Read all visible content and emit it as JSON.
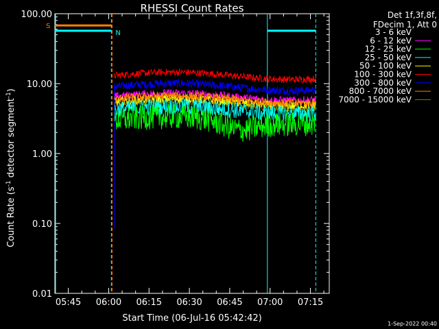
{
  "chart_data": {
    "type": "line",
    "title": "RHESSI Count Rates",
    "xlabel": "Start Time (06-Jul-16 05:42:42)",
    "ylabel_main": "Count Rate (s",
    "ylabel_exp": "-1",
    "ylabel_rest": " detector segment",
    "ylabel_exp2": "-1",
    "ylabel_close": ")",
    "yscale": "log",
    "ylim": [
      0.01,
      100
    ],
    "xlim": [
      "05:40",
      "07:22"
    ],
    "xticks": [
      "05:45",
      "06:00",
      "06:15",
      "06:30",
      "06:45",
      "07:00",
      "07:15"
    ],
    "yticks": [
      "0.01",
      "0.10",
      "1.00",
      "10.00",
      "100.00"
    ],
    "legend_header": [
      "Det 1f,3f,8f,",
      "FDecim 1, Att 0"
    ],
    "series": [
      {
        "name": "3 - 6 keV",
        "color": "#000000",
        "level": 6.0
      },
      {
        "name": "6 - 12 keV",
        "color": "#ff00ff",
        "level": 6.5
      },
      {
        "name": "12 - 25 keV",
        "color": "#00ff00",
        "level": 3.0
      },
      {
        "name": "25 - 50 keV",
        "color": "#00ffff",
        "level": 4.2
      },
      {
        "name": "50 - 100 keV",
        "color": "#ffff00",
        "level": 5.5
      },
      {
        "name": "100 - 300 keV",
        "color": "#ff0000",
        "level": 13.0
      },
      {
        "name": "300 - 800 keV",
        "color": "#0000ff",
        "level": 9.0
      },
      {
        "name": "800 - 7000 keV",
        "color": "#ff8000",
        "level": 6.0
      },
      {
        "name": "7000 - 15000 keV",
        "color": "#808000",
        "level": 5.0
      }
    ],
    "markers": [
      {
        "label": "S",
        "color": "#ff8000"
      },
      {
        "label": "N",
        "color": "#00ffff"
      }
    ],
    "timestamp": "1-Sep-2022 00:40"
  }
}
